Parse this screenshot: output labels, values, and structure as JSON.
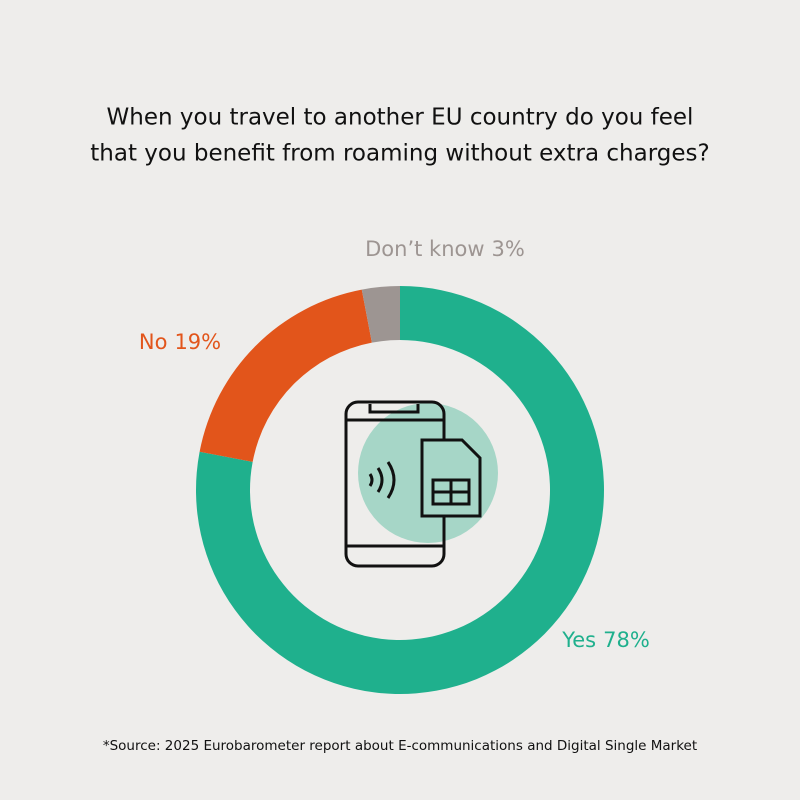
{
  "chart_data": {
    "type": "donut",
    "title": [
      "When you travel to another EU country do you feel",
      "that you benefit from roaming without extra charges?"
    ],
    "categories": [
      "Yes",
      "No",
      "Don’t know"
    ],
    "values": [
      78,
      19,
      3
    ],
    "value_labels": [
      "78%",
      "19%",
      "3%"
    ],
    "colors": [
      "#1fb08d",
      "#e2551b",
      "#9d9592"
    ],
    "source": "*Source: 2025 Eurobarometer report about E-communications and Digital Single Market"
  }
}
